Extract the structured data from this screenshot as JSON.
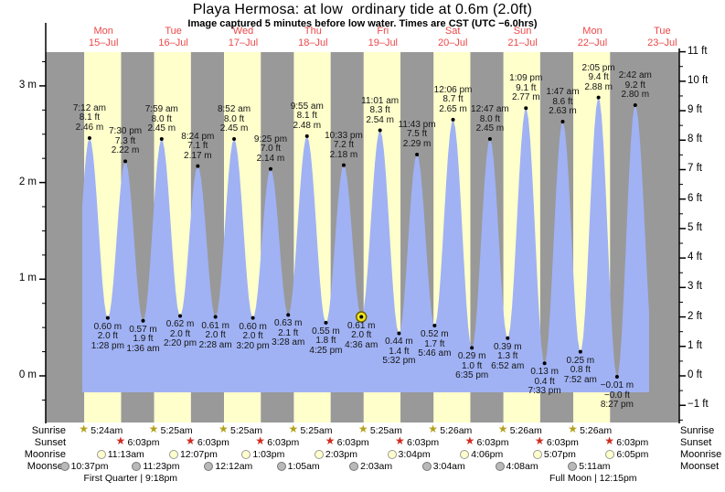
{
  "title": "Playa Hermosa: at low  ordinary tide at 0.6m (2.0ft)",
  "subtitle": "Image captured 5 minutes before low water. Times are CST (UTC −6.0hrs)",
  "days": [
    {
      "dow": "Mon",
      "date": "15–Jul"
    },
    {
      "dow": "Tue",
      "date": "16–Jul"
    },
    {
      "dow": "Wed",
      "date": "17–Jul"
    },
    {
      "dow": "Thu",
      "date": "18–Jul"
    },
    {
      "dow": "Fri",
      "date": "19–Jul"
    },
    {
      "dow": "Sat",
      "date": "20–Jul"
    },
    {
      "dow": "Sun",
      "date": "21–Jul"
    },
    {
      "dow": "Mon",
      "date": "22–Jul"
    },
    {
      "dow": "Tue",
      "date": "23–Jul"
    }
  ],
  "chart_data": {
    "type": "area",
    "title": "Playa Hermosa tide curve",
    "day_color": "#ffffcc",
    "night_color": "#999999",
    "water_color": "#a0b2f4",
    "day_label_color": "#ee4747",
    "current_marker_color": "#f2e41e",
    "y_axis_left": {
      "unit": "m",
      "ticks": [
        {
          "value": 3,
          "label": "3 m"
        },
        {
          "value": 2,
          "label": "2 m"
        },
        {
          "value": 1,
          "label": "1 m"
        },
        {
          "value": 0,
          "label": "0 m"
        }
      ]
    },
    "y_axis_right": {
      "unit": "ft",
      "ticks": [
        {
          "value": 11,
          "label": "11 ft"
        },
        {
          "value": 10,
          "label": "10 ft"
        },
        {
          "value": 9,
          "label": "9 ft"
        },
        {
          "value": 8,
          "label": "8 ft"
        },
        {
          "value": 7,
          "label": "7 ft"
        },
        {
          "value": 6,
          "label": "6 ft"
        },
        {
          "value": 5,
          "label": "5 ft"
        },
        {
          "value": 4,
          "label": "4 ft"
        },
        {
          "value": 3,
          "label": "3 ft"
        },
        {
          "value": 2,
          "label": "2 ft"
        },
        {
          "value": 1,
          "label": "1 ft"
        },
        {
          "value": 0,
          "label": "0 ft"
        },
        {
          "value": -1,
          "label": "−1 ft"
        }
      ]
    },
    "high_tides": [
      {
        "day": 0,
        "time": "7:12 am",
        "height_ft": "8.1 ft",
        "height_m": "2.46 m",
        "m": 2.46
      },
      {
        "day": 0,
        "time": "7:30 pm",
        "height_ft": "7.3 ft",
        "height_m": "2.22 m",
        "m": 2.22
      },
      {
        "day": 1,
        "time": "7:59 am",
        "height_ft": "8.0 ft",
        "height_m": "2.45 m",
        "m": 2.45
      },
      {
        "day": 1,
        "time": "8:24 pm",
        "height_ft": "7.1 ft",
        "height_m": "2.17 m",
        "m": 2.17
      },
      {
        "day": 2,
        "time": "8:52 am",
        "height_ft": "8.0 ft",
        "height_m": "2.45 m",
        "m": 2.45
      },
      {
        "day": 2,
        "time": "9:25 pm",
        "height_ft": "7.0 ft",
        "height_m": "2.14 m",
        "m": 2.14
      },
      {
        "day": 3,
        "time": "9:55 am",
        "height_ft": "8.1 ft",
        "height_m": "2.48 m",
        "m": 2.48
      },
      {
        "day": 3,
        "time": "10:33 pm",
        "height_ft": "7.2 ft",
        "height_m": "2.18 m",
        "m": 2.18
      },
      {
        "day": 4,
        "time": "11:01 am",
        "height_ft": "8.3 ft",
        "height_m": "2.54 m",
        "m": 2.54
      },
      {
        "day": 4,
        "time": "11:43 pm",
        "height_ft": "7.5 ft",
        "height_m": "2.29 m",
        "m": 2.29
      },
      {
        "day": 5,
        "time": "12:06 pm",
        "height_ft": "8.7 ft",
        "height_m": "2.65 m",
        "m": 2.65
      },
      {
        "day": 6,
        "time": "12:47 am",
        "height_ft": "8.0 ft",
        "height_m": "2.45 m",
        "m": 2.45
      },
      {
        "day": 6,
        "time": "1:09 pm",
        "height_ft": "9.1 ft",
        "height_m": "2.77 m",
        "m": 2.77
      },
      {
        "day": 7,
        "time": "1:47 am",
        "height_ft": "8.6 ft",
        "height_m": "2.63 m",
        "m": 2.63
      },
      {
        "day": 7,
        "time": "2:05 pm",
        "height_ft": "9.4 ft",
        "height_m": "2.88 m",
        "m": 2.88
      },
      {
        "day": 8,
        "time": "2:42 am",
        "height_ft": "9.2 ft",
        "height_m": "2.80 m",
        "m": 2.8
      }
    ],
    "low_tides": [
      {
        "day": 0,
        "time": "1:28 pm",
        "height_m": "0.60 m",
        "height_ft": "2.0 ft",
        "m": 0.6,
        "current": false
      },
      {
        "day": 1,
        "time": "1:36 am",
        "height_m": "0.57 m",
        "height_ft": "1.9 ft",
        "m": 0.57,
        "current": false
      },
      {
        "day": 1,
        "time": "2:20 pm",
        "height_m": "0.62 m",
        "height_ft": "2.0 ft",
        "m": 0.62,
        "current": false
      },
      {
        "day": 2,
        "time": "2:28 am",
        "height_m": "0.61 m",
        "height_ft": "2.0 ft",
        "m": 0.61,
        "current": false
      },
      {
        "day": 2,
        "time": "3:20 pm",
        "height_m": "0.60 m",
        "height_ft": "2.0 ft",
        "m": 0.6,
        "current": false
      },
      {
        "day": 3,
        "time": "3:28 am",
        "height_m": "0.63 m",
        "height_ft": "2.1 ft",
        "m": 0.63,
        "current": false
      },
      {
        "day": 3,
        "time": "4:25 pm",
        "height_m": "0.55 m",
        "height_ft": "1.8 ft",
        "m": 0.55,
        "current": false
      },
      {
        "day": 4,
        "time": "4:36 am",
        "height_m": "0.61 m",
        "height_ft": "2.0 ft",
        "m": 0.61,
        "current": true
      },
      {
        "day": 4,
        "time": "5:32 pm",
        "height_m": "0.44 m",
        "height_ft": "1.4 ft",
        "m": 0.44,
        "current": false
      },
      {
        "day": 5,
        "time": "5:46 am",
        "height_m": "0.52 m",
        "height_ft": "1.7 ft",
        "m": 0.52,
        "current": false
      },
      {
        "day": 5,
        "time": "6:35 pm",
        "height_m": "0.29 m",
        "height_ft": "1.0 ft",
        "m": 0.29,
        "current": false
      },
      {
        "day": 6,
        "time": "6:52 am",
        "height_m": "0.39 m",
        "height_ft": "1.3 ft",
        "m": 0.39,
        "current": false
      },
      {
        "day": 6,
        "time": "7:33 pm",
        "height_m": "0.13 m",
        "height_ft": "0.4 ft",
        "m": 0.13,
        "current": false
      },
      {
        "day": 7,
        "time": "7:52 am",
        "height_m": "0.25 m",
        "height_ft": "0.8 ft",
        "m": 0.25,
        "current": false
      },
      {
        "day": 7,
        "time": "8:27 pm",
        "height_m": "−0.01 m",
        "height_ft": "−0.0 ft",
        "m": -0.01,
        "current": false
      }
    ]
  },
  "astro": {
    "row_labels": {
      "sunrise": "Sunrise",
      "sunset": "Sunset",
      "moonrise": "Moonrise",
      "moonset": "Moonset"
    },
    "sunrise": [
      {
        "day": 0,
        "time": "5:24am"
      },
      {
        "day": 1,
        "time": "5:25am"
      },
      {
        "day": 2,
        "time": "5:25am"
      },
      {
        "day": 3,
        "time": "5:25am"
      },
      {
        "day": 4,
        "time": "5:25am"
      },
      {
        "day": 5,
        "time": "5:26am"
      },
      {
        "day": 6,
        "time": "5:26am"
      },
      {
        "day": 7,
        "time": "5:26am"
      }
    ],
    "sunset": [
      {
        "day": 0,
        "time": "6:03pm"
      },
      {
        "day": 1,
        "time": "6:03pm"
      },
      {
        "day": 2,
        "time": "6:03pm"
      },
      {
        "day": 3,
        "time": "6:03pm"
      },
      {
        "day": 4,
        "time": "6:03pm"
      },
      {
        "day": 5,
        "time": "6:03pm"
      },
      {
        "day": 6,
        "time": "6:03pm"
      },
      {
        "day": 7,
        "time": "6:03pm"
      }
    ],
    "moonrise": [
      {
        "day": 0,
        "time": "11:13am"
      },
      {
        "day": 1,
        "time": "12:07pm"
      },
      {
        "day": 2,
        "time": "1:03pm"
      },
      {
        "day": 3,
        "time": "2:03pm"
      },
      {
        "day": 4,
        "time": "3:04pm"
      },
      {
        "day": 5,
        "time": "4:06pm"
      },
      {
        "day": 6,
        "time": "5:07pm"
      },
      {
        "day": 7,
        "time": "6:05pm"
      }
    ],
    "moonset": [
      {
        "day": -1,
        "time": "10:37pm"
      },
      {
        "day": 0,
        "time": "11:23pm"
      },
      {
        "day": 2,
        "time": "12:12am"
      },
      {
        "day": 3,
        "time": "1:05am"
      },
      {
        "day": 4,
        "time": "2:03am"
      },
      {
        "day": 5,
        "time": "3:04am"
      },
      {
        "day": 6,
        "time": "4:08am"
      },
      {
        "day": 7,
        "time": "5:11am"
      }
    ],
    "phases": [
      {
        "day": 0,
        "time": "9:18 pm",
        "label": "First Quarter | 9:18pm"
      },
      {
        "day": 7,
        "time": "12:15 pm",
        "label": "Full Moon | 12:15pm"
      }
    ]
  }
}
